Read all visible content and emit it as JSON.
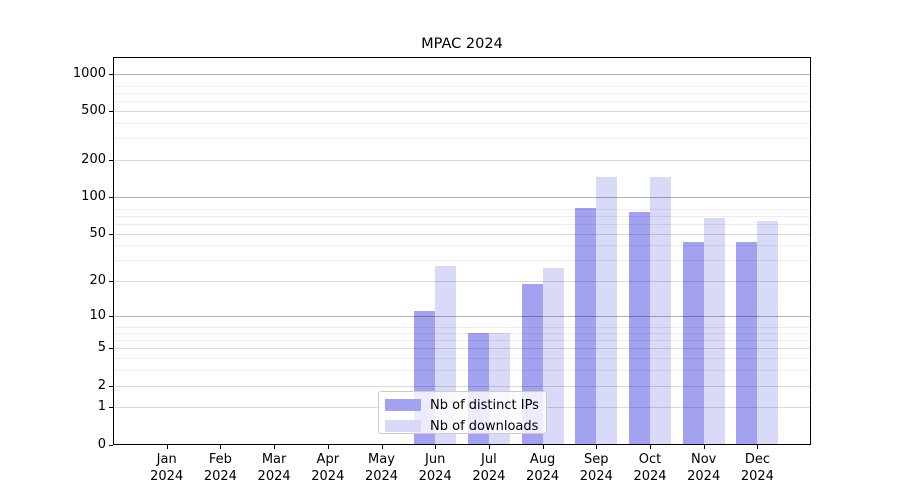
{
  "figure": {
    "background": "#ffffff"
  },
  "chart_data": {
    "type": "bar",
    "title": "MPAC 2024",
    "categories": [
      "Jan 2024",
      "Feb 2024",
      "Mar 2024",
      "Apr 2024",
      "May 2024",
      "Jun 2024",
      "Jul 2024",
      "Aug 2024",
      "Sep 2024",
      "Oct 2024",
      "Nov 2024",
      "Dec 2024"
    ],
    "series": [
      {
        "name": "Nb of distinct IPs",
        "color": "#a2a2f0",
        "values": [
          0,
          0,
          0,
          0,
          0,
          11,
          7,
          19,
          82,
          75,
          43,
          43
        ]
      },
      {
        "name": "Nb of downloads",
        "color": "#d9d9f8",
        "values": [
          0,
          0,
          0,
          0,
          0,
          27,
          7,
          26,
          145,
          145,
          67,
          64
        ]
      }
    ],
    "y_scale": "log1p",
    "y_ticks": [
      0,
      1,
      2,
      5,
      10,
      20,
      50,
      100,
      200,
      500,
      1000
    ],
    "ylim": [
      0,
      1372
    ],
    "grid": true,
    "legend_position": "lower center"
  }
}
